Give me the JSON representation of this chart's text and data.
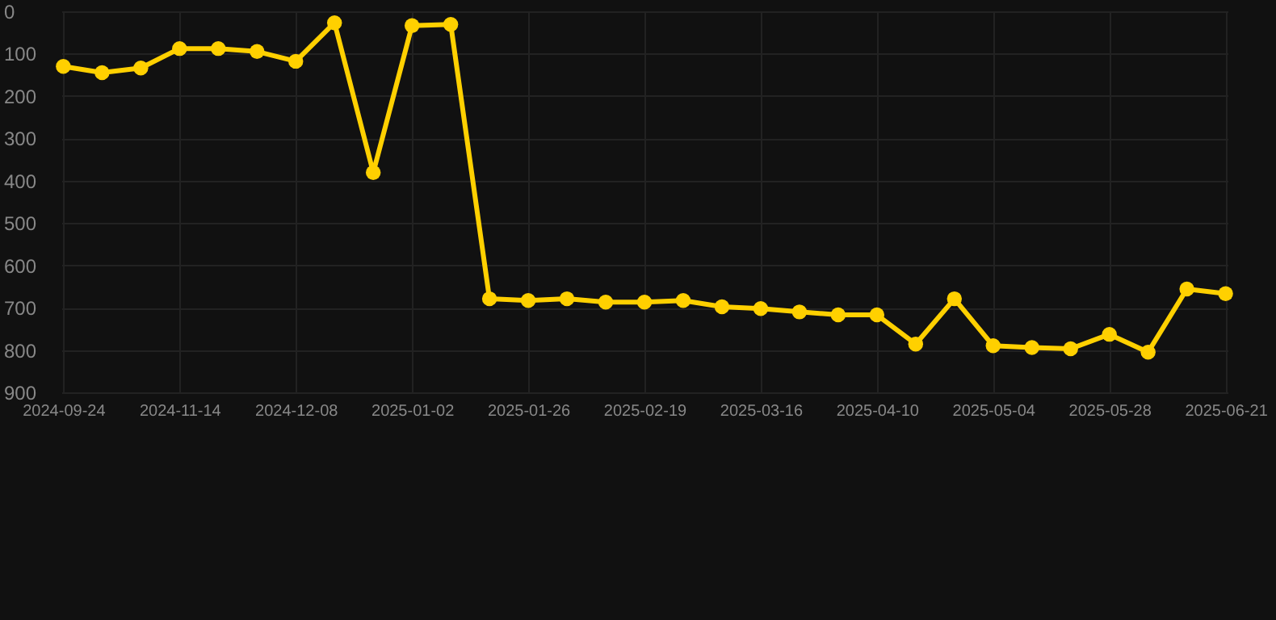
{
  "chart_data": {
    "type": "line",
    "categories": [
      "2024-09-24",
      null,
      null,
      "2024-11-14",
      null,
      null,
      "2024-12-08",
      null,
      null,
      "2025-01-02",
      null,
      null,
      "2025-01-26",
      null,
      null,
      "2025-02-19",
      null,
      null,
      "2025-03-16",
      null,
      null,
      "2025-04-10",
      null,
      null,
      "2025-05-04",
      null,
      null,
      "2025-05-28",
      null,
      null,
      "2025-06-21"
    ],
    "series": [
      {
        "color": "#ffd000",
        "values": [
          130,
          145,
          134,
          88,
          88,
          95,
          118,
          27,
          381,
          34,
          31,
          679,
          683,
          679,
          687,
          687,
          683,
          698,
          702,
          710,
          717,
          717,
          786,
          679,
          790,
          794,
          797,
          763,
          805,
          656,
          667
        ]
      }
    ],
    "ylim": [
      900,
      0
    ],
    "yticks": [
      0,
      100,
      200,
      300,
      400,
      500,
      600,
      700,
      800,
      900
    ],
    "grid": true,
    "marker": "circle",
    "line_style": "solid"
  }
}
